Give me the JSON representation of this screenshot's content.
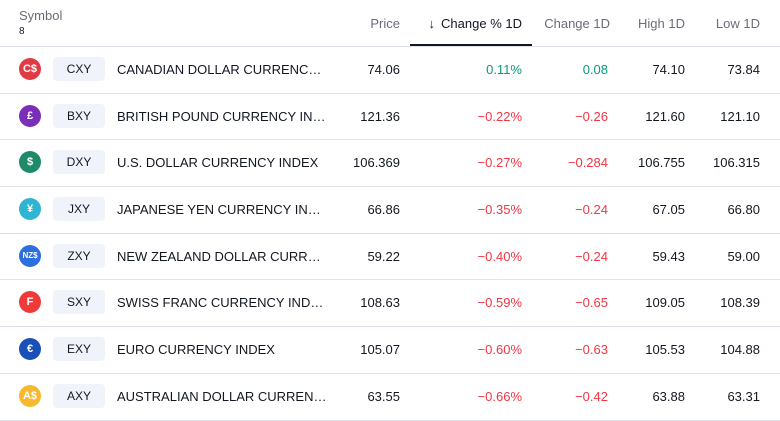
{
  "header": {
    "symbol_label": "Symbol",
    "symbol_count": "8",
    "price": "Price",
    "change_pct": "Change % 1D",
    "sort_arrow": "↓",
    "change": "Change 1D",
    "high": "High 1D",
    "low": "Low 1D"
  },
  "rows": [
    {
      "logo": "C$",
      "logo_color": "#e03a45",
      "ticker": "CXY",
      "name": "CANADIAN DOLLAR CURRENCY IN…",
      "price": "74.06",
      "change_pct": "0.11%",
      "change": "0.08",
      "high": "74.10",
      "low": "73.84",
      "direction": "up"
    },
    {
      "logo": "£",
      "logo_color": "#7b2fb8",
      "ticker": "BXY",
      "name": "BRITISH POUND CURRENCY INDEX",
      "price": "121.36",
      "change_pct": "−0.22%",
      "change": "−0.26",
      "high": "121.60",
      "low": "121.10",
      "direction": "down"
    },
    {
      "logo": "$",
      "logo_color": "#1f8a6a",
      "ticker": "DXY",
      "name": "U.S. DOLLAR CURRENCY INDEX",
      "price": "106.369",
      "change_pct": "−0.27%",
      "change": "−0.284",
      "high": "106.755",
      "low": "106.315",
      "direction": "down"
    },
    {
      "logo": "¥",
      "logo_color": "#2fb5d3",
      "ticker": "JXY",
      "name": "JAPANESE YEN CURRENCY INDEX",
      "price": "66.86",
      "change_pct": "−0.35%",
      "change": "−0.24",
      "high": "67.05",
      "low": "66.80",
      "direction": "down"
    },
    {
      "logo": "NZ$",
      "logo_color": "#2e6fe0",
      "ticker": "ZXY",
      "name": "NEW ZEALAND DOLLAR CURRENC…",
      "price": "59.22",
      "change_pct": "−0.40%",
      "change": "−0.24",
      "high": "59.43",
      "low": "59.00",
      "direction": "down"
    },
    {
      "logo": "F",
      "logo_color": "#ef3a3a",
      "ticker": "SXY",
      "name": "SWISS FRANC CURRENCY INDEX",
      "price": "108.63",
      "change_pct": "−0.59%",
      "change": "−0.65",
      "high": "109.05",
      "low": "108.39",
      "direction": "down"
    },
    {
      "logo": "€",
      "logo_color": "#1a4fb8",
      "ticker": "EXY",
      "name": "EURO CURRENCY INDEX",
      "price": "105.07",
      "change_pct": "−0.60%",
      "change": "−0.63",
      "high": "105.53",
      "low": "104.88",
      "direction": "down"
    },
    {
      "logo": "A$",
      "logo_color": "#f5b82e",
      "ticker": "AXY",
      "name": "AUSTRALIAN DOLLAR CURRENCY I…",
      "price": "63.55",
      "change_pct": "−0.66%",
      "change": "−0.42",
      "high": "63.88",
      "low": "63.31",
      "direction": "down"
    }
  ]
}
